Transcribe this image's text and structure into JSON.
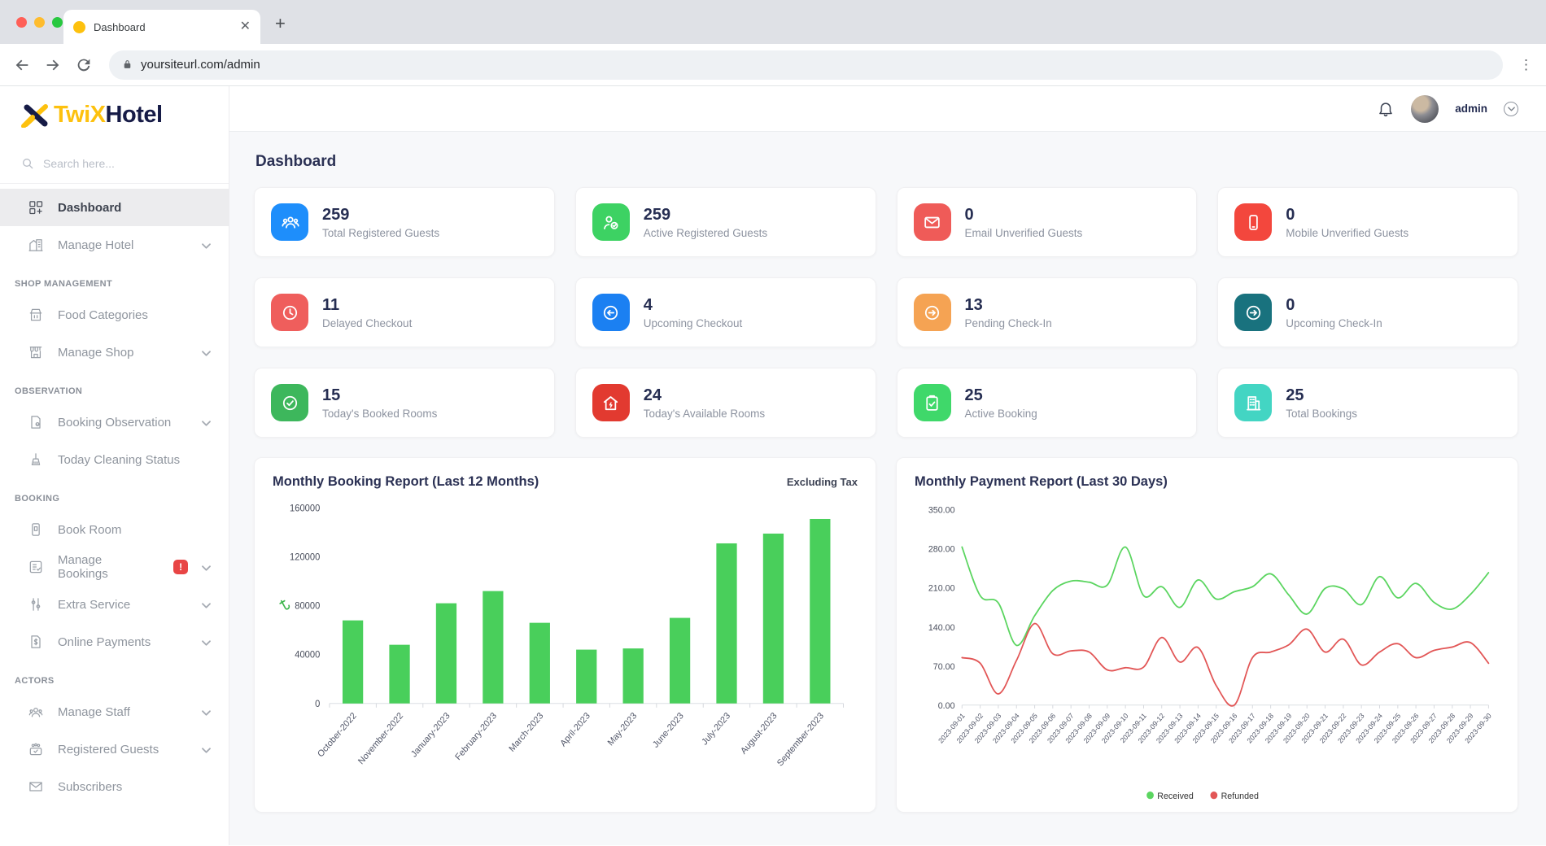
{
  "browser": {
    "tab_title": "Dashboard",
    "url": "yoursiteurl.com/admin"
  },
  "sidebar": {
    "logo": {
      "part1": "TwiX",
      "part2": "Hotel"
    },
    "search_placeholder": "Search here...",
    "items": [
      {
        "type": "item",
        "icon": "dashboard-icon",
        "label": "Dashboard",
        "active": true
      },
      {
        "type": "item",
        "icon": "hotel-icon",
        "label": "Manage Hotel",
        "chevron": true
      },
      {
        "type": "section",
        "label": "SHOP MANAGEMENT"
      },
      {
        "type": "item",
        "icon": "food-icon",
        "label": "Food Categories"
      },
      {
        "type": "item",
        "icon": "shop-icon",
        "label": "Manage Shop",
        "chevron": true
      },
      {
        "type": "section",
        "label": "OBSERVATION"
      },
      {
        "type": "item",
        "icon": "observation-icon",
        "label": "Booking Observation",
        "chevron": true
      },
      {
        "type": "item",
        "icon": "cleaning-icon",
        "label": "Today Cleaning Status"
      },
      {
        "type": "section",
        "label": "BOOKING"
      },
      {
        "type": "item",
        "icon": "book-room-icon",
        "label": "Book Room"
      },
      {
        "type": "item",
        "icon": "bookings-icon",
        "label": "Manage Bookings",
        "badge": "!",
        "chevron": true
      },
      {
        "type": "item",
        "icon": "extra-service-icon",
        "label": "Extra Service",
        "chevron": true
      },
      {
        "type": "item",
        "icon": "payments-icon",
        "label": "Online Payments",
        "chevron": true
      },
      {
        "type": "section",
        "label": "ACTORS"
      },
      {
        "type": "item",
        "icon": "staff-icon",
        "label": "Manage Staff",
        "chevron": true
      },
      {
        "type": "item",
        "icon": "guests-icon",
        "label": "Registered Guests",
        "chevron": true
      },
      {
        "type": "item",
        "icon": "subscribers-icon",
        "label": "Subscribers"
      }
    ]
  },
  "header": {
    "username": "admin"
  },
  "page": {
    "title": "Dashboard"
  },
  "stats": [
    {
      "value": "259",
      "label": "Total Registered Guests",
      "color": "#1e8efb",
      "icon": "users-icon"
    },
    {
      "value": "259",
      "label": "Active Registered Guests",
      "color": "#3dd263",
      "icon": "user-check-icon"
    },
    {
      "value": "0",
      "label": "Email Unverified Guests",
      "color": "#ef5b58",
      "icon": "mail-icon"
    },
    {
      "value": "0",
      "label": "Mobile Unverified Guests",
      "color": "#f3473d",
      "icon": "mobile-icon"
    },
    {
      "value": "11",
      "label": "Delayed Checkout",
      "color": "#ef5e5c",
      "icon": "clock-icon"
    },
    {
      "value": "4",
      "label": "Upcoming Checkout",
      "color": "#1b80f2",
      "icon": "checkout-icon"
    },
    {
      "value": "13",
      "label": "Pending Check-In",
      "color": "#f5a353",
      "icon": "checkin-icon"
    },
    {
      "value": "0",
      "label": "Upcoming Check-In",
      "color": "#19727e",
      "icon": "checkin-icon"
    },
    {
      "value": "15",
      "label": "Today's Booked Rooms",
      "color": "#3db75c",
      "icon": "check-circle-icon"
    },
    {
      "value": "24",
      "label": "Today's Available Rooms",
      "color": "#e23a30",
      "icon": "home-icon"
    },
    {
      "value": "25",
      "label": "Active Booking",
      "color": "#3fd86a",
      "icon": "clipboard-check-icon"
    },
    {
      "value": "25",
      "label": "Total Bookings",
      "color": "#43d5c3",
      "icon": "building-icon"
    }
  ],
  "chart_data": [
    {
      "type": "bar",
      "title": "Monthly Booking Report (Last 12 Months)",
      "note": "Excluding Tax",
      "currency_symbol": "৳",
      "categories": [
        "October-2022",
        "November-2022",
        "January-2023",
        "February-2023",
        "March-2023",
        "April-2023",
        "May-2023",
        "June-2023",
        "July-2023",
        "August-2023",
        "September-2023"
      ],
      "values": [
        68000,
        48000,
        82000,
        92000,
        66000,
        44000,
        45000,
        70000,
        131000,
        139000,
        151000
      ],
      "bar_color": "#49cf5b",
      "ylim": [
        0,
        160000
      ],
      "yticks": [
        0,
        40000,
        80000,
        120000,
        160000
      ],
      "grid": false,
      "legend_position": "none"
    },
    {
      "type": "line",
      "title": "Monthly Payment Report (Last 30 Days)",
      "x": [
        "2023-09-01",
        "2023-09-02",
        "2023-09-03",
        "2023-09-04",
        "2023-09-05",
        "2023-09-06",
        "2023-09-07",
        "2023-09-08",
        "2023-09-09",
        "2023-09-10",
        "2023-09-11",
        "2023-09-12",
        "2023-09-13",
        "2023-09-14",
        "2023-09-15",
        "2023-09-16",
        "2023-09-17",
        "2023-09-18",
        "2023-09-19",
        "2023-09-20",
        "2023-09-21",
        "2023-09-22",
        "2023-09-23",
        "2023-09-24",
        "2023-09-25",
        "2023-09-26",
        "2023-09-27",
        "2023-09-28",
        "2023-09-29",
        "2023-09-30"
      ],
      "series": [
        {
          "name": "Received",
          "color": "#5bd560",
          "values": [
            283,
            196,
            183,
            107,
            160,
            205,
            222,
            220,
            215,
            283,
            196,
            212,
            175,
            224,
            190,
            203,
            212,
            235,
            197,
            163,
            209,
            208,
            180,
            230,
            192,
            218,
            184,
            172,
            198,
            237
          ]
        },
        {
          "name": "Refunded",
          "color": "#e25656",
          "values": [
            85,
            75,
            20,
            80,
            146,
            92,
            97,
            95,
            63,
            67,
            68,
            121,
            77,
            103,
            35,
            0,
            85,
            95,
            108,
            136,
            95,
            118,
            72,
            95,
            110,
            85,
            98,
            104,
            112,
            75
          ]
        }
      ],
      "ylim": [
        0,
        350
      ],
      "yticks": [
        0,
        70,
        140,
        210,
        280,
        350
      ],
      "grid": false,
      "legend_position": "bottom"
    }
  ]
}
